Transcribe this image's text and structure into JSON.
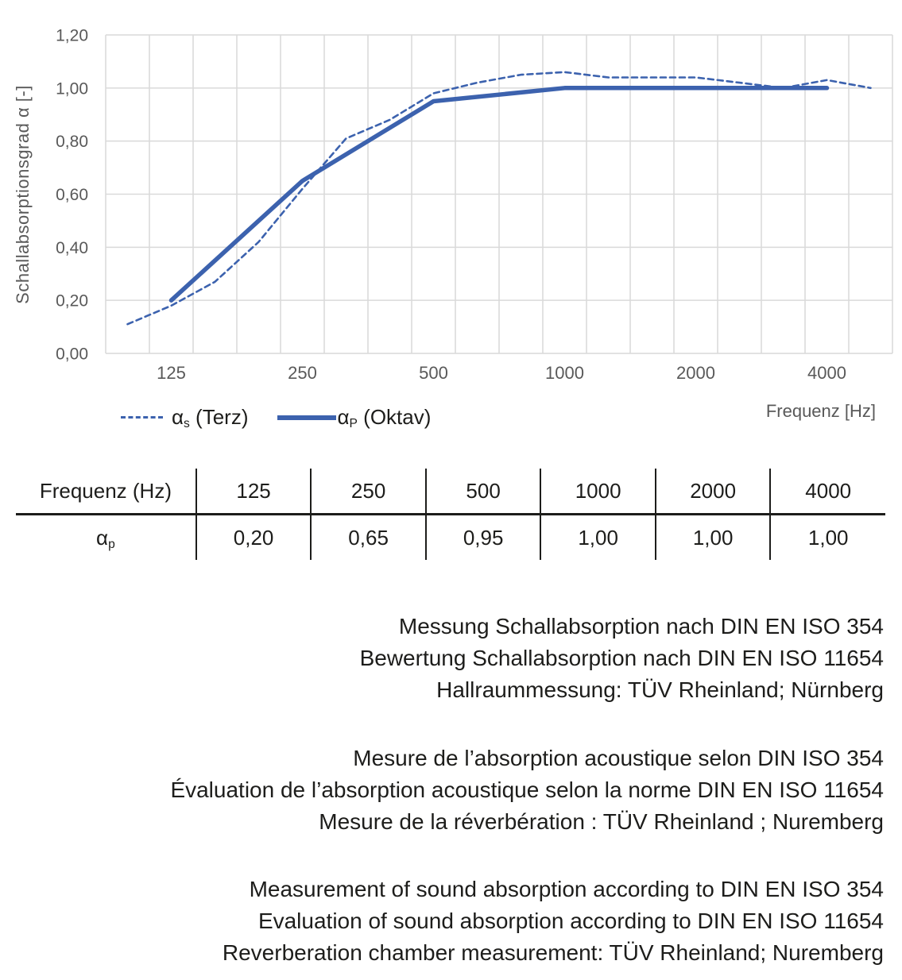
{
  "chart_data": {
    "type": "line",
    "title": "",
    "ylabel": "Schallabsorptionsgrad α [-]",
    "xlabel": "Frequenz [Hz]",
    "ylim": [
      0.0,
      1.2
    ],
    "grid": true,
    "legend_position": "bottom-left",
    "line_color": "#3C62AE",
    "grid_color": "#D9D9D9",
    "axis_text_color": "#595959",
    "y_tick_labels": [
      "0,00",
      "0,20",
      "0,40",
      "0,60",
      "0,80",
      "1,00",
      "1,20"
    ],
    "categories": [
      100,
      125,
      160,
      200,
      250,
      315,
      400,
      500,
      630,
      800,
      1000,
      1250,
      1600,
      2000,
      2500,
      3150,
      4000,
      5000
    ],
    "x_tick_categories": [
      125,
      250,
      500,
      1000,
      2000,
      4000
    ],
    "x_tick_labels": [
      "125",
      "250",
      "500",
      "1000",
      "2000",
      "4000"
    ],
    "series": [
      {
        "name": "αs (Terz)",
        "style": "dashed",
        "x": [
          100,
          125,
          160,
          200,
          250,
          315,
          400,
          500,
          630,
          800,
          1000,
          1250,
          1600,
          2000,
          2500,
          3150,
          4000,
          5000
        ],
        "values": [
          0.11,
          0.18,
          0.27,
          0.42,
          0.62,
          0.81,
          0.88,
          0.98,
          1.02,
          1.05,
          1.06,
          1.04,
          1.04,
          1.04,
          1.02,
          1.0,
          1.03,
          1.0
        ]
      },
      {
        "name": "αP (Oktav)",
        "style": "solid",
        "x": [
          125,
          250,
          500,
          1000,
          2000,
          4000
        ],
        "values": [
          0.2,
          0.65,
          0.95,
          1.0,
          1.0,
          1.0
        ]
      }
    ]
  },
  "legend": {
    "terz": {
      "alpha": "α",
      "sub": "s",
      "label": " (Terz)"
    },
    "oktav": {
      "alpha": "α",
      "sub": "P",
      "label": " (Oktav)"
    }
  },
  "table": {
    "header_label": "Frequenz (Hz)",
    "row_label": {
      "base": "α",
      "sub": "p"
    },
    "frequencies": [
      "125",
      "250",
      "500",
      "1000",
      "2000",
      "4000"
    ],
    "values": [
      "0,20",
      "0,65",
      "0,95",
      "1,00",
      "1,00",
      "1,00"
    ]
  },
  "texts": {
    "german": [
      "Messung Schallabsorption nach DIN EN ISO 354",
      "Bewertung Schallabsorption nach DIN EN ISO 11654",
      "Hallraummessung: TÜV Rheinland; Nürnberg"
    ],
    "french": [
      "Mesure de l’absorption acoustique selon DIN ISO 354",
      "Évaluation de l’absorption acoustique selon la norme DIN EN ISO 11654",
      "Mesure de la réverbération : TÜV Rheinland ; Nuremberg"
    ],
    "english": [
      "Measurement of sound absorption according to DIN EN ISO 354",
      "Evaluation of sound absorption according to DIN EN ISO 11654",
      "Reverberation chamber measurement: TÜV Rheinland; Nuremberg"
    ]
  }
}
